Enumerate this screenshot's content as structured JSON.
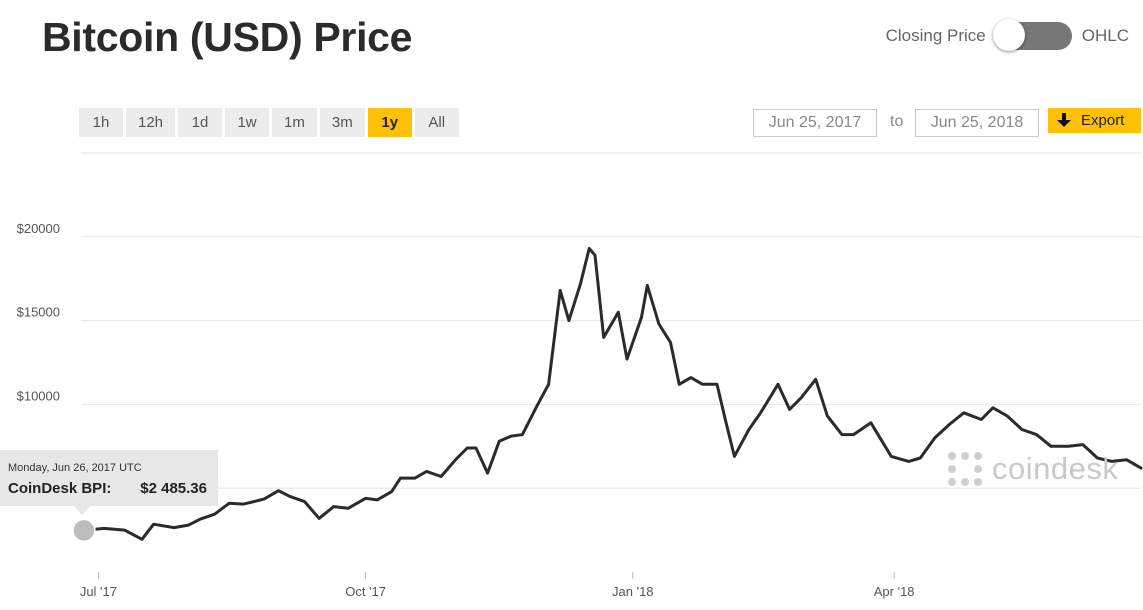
{
  "header": {
    "title": "Bitcoin (USD) Price",
    "toggle": {
      "left_label": "Closing Price",
      "right_label": "OHLC",
      "selected": "Closing Price"
    }
  },
  "ranges": [
    {
      "label": "1h",
      "active": false
    },
    {
      "label": "12h",
      "active": false
    },
    {
      "label": "1d",
      "active": false
    },
    {
      "label": "1w",
      "active": false
    },
    {
      "label": "1m",
      "active": false
    },
    {
      "label": "3m",
      "active": false
    },
    {
      "label": "1y",
      "active": true
    },
    {
      "label": "All",
      "active": false
    }
  ],
  "date_range": {
    "from": "Jun 25, 2017",
    "to_label": "to",
    "to": "Jun 25, 2018"
  },
  "export": {
    "label": "Export",
    "icon": "download-arrow-icon"
  },
  "watermark": {
    "text": "coindesk",
    "icon": "coindesk-logo-icon"
  },
  "tooltip": {
    "date": "Monday, Jun 26, 2017 UTC",
    "label": "CoinDesk BPI:",
    "value": "$2 485.36"
  },
  "colors": {
    "accent": "#ffc107",
    "line": "#2b2b2b",
    "grid": "#e5e5e5"
  },
  "chart_data": {
    "type": "line",
    "title": "Bitcoin (USD) Price",
    "series": [
      {
        "values": [
          [
            "2017-06-26",
            2485
          ],
          [
            "2017-07-03",
            2600
          ],
          [
            "2017-07-10",
            2500
          ],
          [
            "2017-07-16",
            1950
          ],
          [
            "2017-07-20",
            2850
          ],
          [
            "2017-07-27",
            2650
          ],
          [
            "2017-08-01",
            2800
          ],
          [
            "2017-08-05",
            3150
          ],
          [
            "2017-08-10",
            3450
          ],
          [
            "2017-08-15",
            4100
          ],
          [
            "2017-08-20",
            4050
          ],
          [
            "2017-08-27",
            4350
          ],
          [
            "2017-09-01",
            4850
          ],
          [
            "2017-09-05",
            4500
          ],
          [
            "2017-09-10",
            4200
          ],
          [
            "2017-09-15",
            3200
          ],
          [
            "2017-09-20",
            3900
          ],
          [
            "2017-09-25",
            3800
          ],
          [
            "2017-10-01",
            4400
          ],
          [
            "2017-10-05",
            4300
          ],
          [
            "2017-10-10",
            4800
          ],
          [
            "2017-10-13",
            5600
          ],
          [
            "2017-10-18",
            5600
          ],
          [
            "2017-10-22",
            6000
          ],
          [
            "2017-10-27",
            5700
          ],
          [
            "2017-11-01",
            6700
          ],
          [
            "2017-11-05",
            7400
          ],
          [
            "2017-11-08",
            7400
          ],
          [
            "2017-11-12",
            5900
          ],
          [
            "2017-11-16",
            7800
          ],
          [
            "2017-11-20",
            8100
          ],
          [
            "2017-11-24",
            8200
          ],
          [
            "2017-11-29",
            9900
          ],
          [
            "2017-12-03",
            11200
          ],
          [
            "2017-12-07",
            16800
          ],
          [
            "2017-12-10",
            15000
          ],
          [
            "2017-12-14",
            17200
          ],
          [
            "2017-12-17",
            19300
          ],
          [
            "2017-12-19",
            18900
          ],
          [
            "2017-12-22",
            14000
          ],
          [
            "2017-12-27",
            15500
          ],
          [
            "2017-12-30",
            12700
          ],
          [
            "2018-01-04",
            15200
          ],
          [
            "2018-01-06",
            17100
          ],
          [
            "2018-01-10",
            14800
          ],
          [
            "2018-01-14",
            13700
          ],
          [
            "2018-01-17",
            11200
          ],
          [
            "2018-01-21",
            11600
          ],
          [
            "2018-01-25",
            11200
          ],
          [
            "2018-01-30",
            11200
          ],
          [
            "2018-02-02",
            9000
          ],
          [
            "2018-02-05",
            6900
          ],
          [
            "2018-02-10",
            8500
          ],
          [
            "2018-02-14",
            9500
          ],
          [
            "2018-02-20",
            11200
          ],
          [
            "2018-02-24",
            9700
          ],
          [
            "2018-02-28",
            10400
          ],
          [
            "2018-03-05",
            11500
          ],
          [
            "2018-03-09",
            9300
          ],
          [
            "2018-03-14",
            8200
          ],
          [
            "2018-03-18",
            8200
          ],
          [
            "2018-03-24",
            8900
          ],
          [
            "2018-03-31",
            6900
          ],
          [
            "2018-04-06",
            6600
          ],
          [
            "2018-04-10",
            6800
          ],
          [
            "2018-04-15",
            8000
          ],
          [
            "2018-04-20",
            8800
          ],
          [
            "2018-04-25",
            9500
          ],
          [
            "2018-05-01",
            9100
          ],
          [
            "2018-05-05",
            9800
          ],
          [
            "2018-05-10",
            9300
          ],
          [
            "2018-05-15",
            8500
          ],
          [
            "2018-05-20",
            8200
          ],
          [
            "2018-05-25",
            7500
          ],
          [
            "2018-05-31",
            7500
          ],
          [
            "2018-06-05",
            7600
          ],
          [
            "2018-06-10",
            6800
          ],
          [
            "2018-06-15",
            6600
          ],
          [
            "2018-06-20",
            6700
          ],
          [
            "2018-06-25",
            6200
          ]
        ]
      }
    ],
    "x_ticks": [
      {
        "label": "Jul '17",
        "date": "2017-07-01"
      },
      {
        "label": "Oct '17",
        "date": "2017-10-01"
      },
      {
        "label": "Jan '18",
        "date": "2018-01-01"
      },
      {
        "label": "Apr '18",
        "date": "2018-04-01"
      }
    ],
    "y_ticks": [
      {
        "label": "$20000",
        "value": 20000
      },
      {
        "label": "$15000",
        "value": 15000
      },
      {
        "label": "$10000",
        "value": 10000
      }
    ],
    "ylim": [
      0,
      25000
    ],
    "xlim": [
      "2017-06-25",
      "2018-06-25"
    ],
    "grid": true,
    "highlight_point": [
      "2017-06-26",
      2485.36
    ]
  }
}
